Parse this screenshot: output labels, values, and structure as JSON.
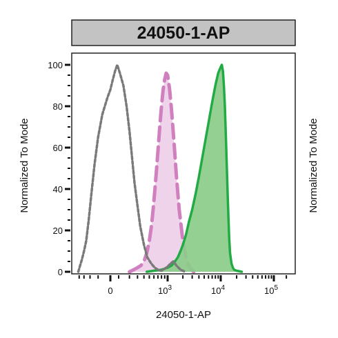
{
  "chart_data": {
    "type": "area",
    "title": "24050-1-AP",
    "xlabel": "24050-1-AP",
    "ylabel": "Normalized To Mode",
    "ylabel_right": "Normalized To Mode",
    "x_scale": "biexponential",
    "x_ticks": [
      {
        "value": 0,
        "label": "0"
      },
      {
        "value": 1000,
        "label": "10",
        "exp": "3"
      },
      {
        "value": 10000,
        "label": "10",
        "exp": "4"
      },
      {
        "value": 100000,
        "label": "10",
        "exp": "5"
      }
    ],
    "y_ticks": [
      0,
      20,
      40,
      60,
      80,
      100
    ],
    "ylim": [
      0,
      100
    ],
    "grid": false,
    "colors": {
      "isotype": "#7a7a7a",
      "secondary": "#d07fbf",
      "secondary_fill": "#efd3ea",
      "antibody": "#22aa44",
      "antibody_fill": "#8ccc8a",
      "title_box": "#c3c3c3"
    },
    "series": [
      {
        "style": "dotted-gray",
        "x": [
          -420,
          -380,
          -340,
          -300,
          -260,
          -220,
          -180,
          -140,
          -100,
          -60,
          -20,
          0,
          20,
          50,
          80,
          110,
          140,
          170,
          200,
          230,
          260,
          300,
          340,
          400,
          460,
          540,
          620,
          700,
          800,
          900,
          1000,
          1150,
          1300,
          1500,
          1800,
          2200
        ],
        "y": [
          0,
          3,
          6,
          10,
          15,
          25,
          38,
          52,
          65,
          76,
          84,
          88,
          92,
          97,
          100,
          96,
          90,
          80,
          68,
          55,
          43,
          32,
          22,
          13,
          7,
          4,
          2,
          1,
          0.5,
          1.5,
          2.5,
          4,
          5,
          3,
          1,
          0
        ]
      },
      {
        "style": "dashed-pink",
        "x": [
          200,
          250,
          300,
          350,
          400,
          450,
          500,
          550,
          600,
          650,
          700,
          750,
          800,
          850,
          900,
          950,
          1000,
          1100,
          1200,
          1350,
          1500,
          1700,
          2000,
          2300,
          2700,
          3200
        ],
        "y": [
          0,
          1,
          2,
          3,
          5,
          9,
          15,
          23,
          34,
          46,
          58,
          70,
          80,
          88,
          93,
          96,
          95,
          88,
          78,
          62,
          46,
          30,
          15,
          7,
          2,
          0
        ]
      },
      {
        "style": "solid-green",
        "x": [
          450,
          600,
          800,
          1000,
          1200,
          1400,
          1600,
          1800,
          2000,
          2300,
          2600,
          3000,
          3500,
          4000,
          4600,
          5300,
          6000,
          7000,
          8000,
          9000,
          10000,
          10500,
          11000,
          11500,
          12000,
          12500,
          13000,
          13500,
          14000,
          14500,
          15000,
          16000,
          17000,
          18000,
          20000,
          25000
        ],
        "y": [
          0,
          0.5,
          1,
          2,
          3,
          5,
          7,
          10,
          13,
          18,
          24,
          30,
          38,
          46,
          55,
          64,
          72,
          82,
          90,
          96,
          99,
          100,
          97,
          90,
          80,
          66,
          52,
          38,
          26,
          16,
          9,
          4,
          2,
          1,
          0.5,
          0
        ]
      }
    ]
  }
}
